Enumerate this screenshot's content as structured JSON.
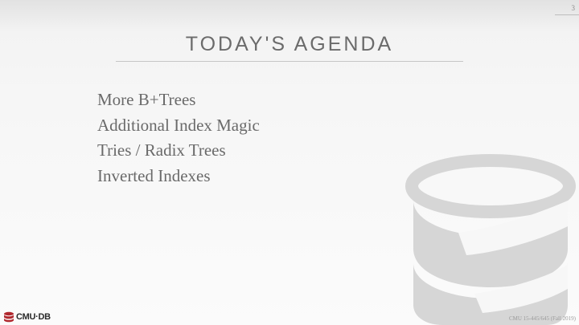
{
  "slide": {
    "page_number": "3",
    "title": "TODAY'S AGENDA",
    "agenda_items": [
      "More B+Trees",
      "Additional Index Magic",
      "Tries / Radix Trees",
      "Inverted Indexes"
    ],
    "footer": "CMU 15-445/645 (Fall 2019)"
  },
  "branding": {
    "logo_text": "CMU·DB",
    "logo_icon": "database-icon",
    "logo_color": "#b0282e",
    "background_art": "database-cylinder-icon"
  }
}
